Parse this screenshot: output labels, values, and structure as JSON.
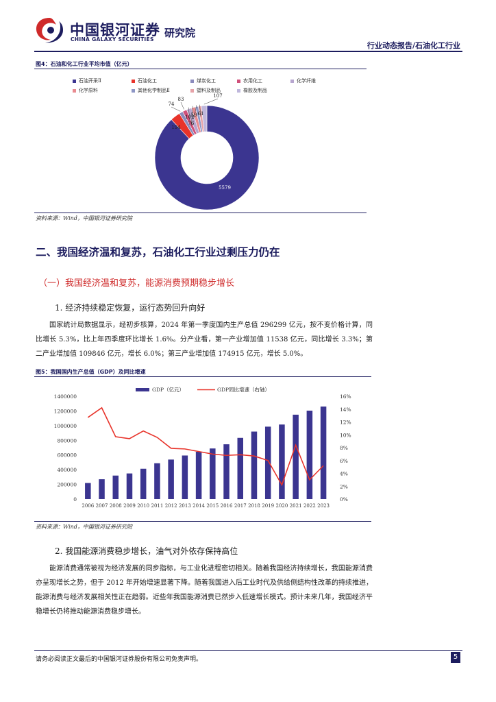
{
  "header": {
    "logo_cn": "中国银河证券",
    "logo_en": "CHINA GALAXY SECURITIES",
    "institute": "研究院",
    "report_type": "行业动态报告/石油化工行业"
  },
  "figure4": {
    "title": "图4：石油和化工行业平均市值（亿元）",
    "source": "资料来源：Wind，中国银河证券研究院",
    "legend": [
      "石油开采Ⅱ",
      "石油化工",
      "煤炭化工",
      "农用化工",
      "化学纤维",
      "化学原料",
      "其他化学制品Ⅱ",
      "塑料及制品",
      "橡胶及制品"
    ],
    "colors": [
      "#3b3590",
      "#e8332a",
      "#8b8bbd",
      "#d0507a",
      "#b7a6cf",
      "#e98b90",
      "#8d96c5",
      "#e6a3a8",
      "#bfb7dc"
    ],
    "chart_data": {
      "type": "pie",
      "categories": [
        "石油开采Ⅱ",
        "石油化工",
        "煤炭化工",
        "农用化工",
        "化学纤维",
        "化学原料",
        "其他化学制品Ⅱ",
        "塑料及制品",
        "橡胶及制品"
      ],
      "values": [
        5579,
        194,
        74,
        83,
        102,
        76,
        59,
        61,
        107
      ],
      "value_labels": [
        "5579",
        "194",
        "74",
        "83",
        "102",
        "76",
        "59",
        "61",
        "107"
      ]
    }
  },
  "section2": {
    "heading": "二、我国经济温和复苏，石油化工行业过剩压力仍在",
    "sub1": "（一）我国经济温和复苏，能源消费预期稳步增长",
    "point1": "1. 经济持续稳定恢复，运行态势回升向好",
    "para1": "国家统计局数据显示，经初步核算，2024 年第一季度国内生产总值 296299 亿元，按不变价格计算，同比增长 5.3%，比上年四季度环比增长 1.6%。分产业看，第一产业增加值 11538 亿元，同比增长 3.3%；第二产业增加值 109846 亿元，增长 6.0%；第三产业增加值 174915 亿元，增长 5.0%。"
  },
  "figure5": {
    "title": "图5：我国国内生产总值（GDP）及同比增速",
    "source": "资料来源：Wind，中国银河证券研究院",
    "bar_color": "#3b3590",
    "line_color": "#e8332a",
    "chart_data": {
      "type": "bar",
      "categories": [
        "2006",
        "2007",
        "2008",
        "2009",
        "2010",
        "2011",
        "2012",
        "2013",
        "2014",
        "2015",
        "2016",
        "2017",
        "2018",
        "2019",
        "2020",
        "2021",
        "2022",
        "2023"
      ],
      "series": [
        {
          "name": "GDP（亿元）",
          "type": "bar",
          "axis": "left",
          "values": [
            219000,
            270000,
            320000,
            349000,
            413000,
            488000,
            538000,
            593000,
            644000,
            689000,
            746000,
            833000,
            919000,
            986000,
            1015000,
            1149000,
            1204000,
            1260000
          ]
        },
        {
          "name": "GDP同比增速（右轴）",
          "type": "line",
          "axis": "right",
          "values": [
            12.7,
            14.2,
            9.7,
            9.4,
            10.6,
            9.6,
            7.9,
            7.8,
            7.4,
            7.0,
            6.8,
            6.9,
            6.7,
            6.0,
            2.2,
            8.4,
            3.0,
            5.2
          ]
        }
      ],
      "y_left_ticks": [
        "1400000",
        "1200000",
        "1000000",
        "800000",
        "600000",
        "400000",
        "200000",
        "0"
      ],
      "y_right_ticks": [
        "16%",
        "14%",
        "12%",
        "10%",
        "8%",
        "6%",
        "4%",
        "2%",
        "0%"
      ],
      "ylim_left": [
        0,
        1400000
      ],
      "ylim_right": [
        0,
        16
      ],
      "legend_position": "top"
    }
  },
  "point2": {
    "title": "2. 我国能源消费稳步增长，油气对外依存保持高位",
    "para": "能源消费通常被视为经济发展的同步指标，与工业化进程密切相关。随着我国经济持续增长，我国能源消费亦呈现增长之势，但于 2012 年开始增速显著下降。随着我国进入后工业时代及供给侧结构性改革的持续推进，能源消费与经济发展相关性正在趋弱。近些年我国能源消费已然步入低速增长模式。预计未来几年，我国经济平稳增长仍将推动能源消费稳步增长。"
  },
  "footer": {
    "disclaimer": "请务必阅读正文最后的中国银河证券股份有限公司免责声明。",
    "page": "5"
  }
}
